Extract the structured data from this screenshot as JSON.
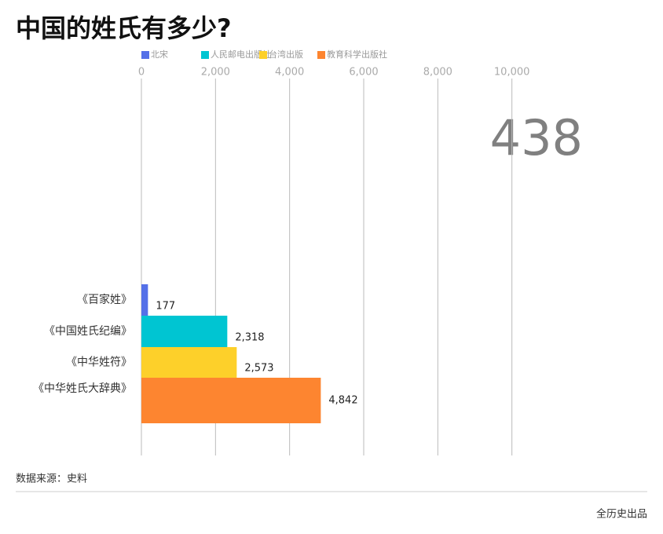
{
  "chart_data": {
    "type": "hbar",
    "title": "中国的姓氏有多少?",
    "legend": [
      "北宋",
      "人民邮电出版社",
      "台湾出版",
      "教育科学出版社"
    ],
    "categories": [
      "《百家姓》",
      "《中国姓氏纪编》",
      "《中华姓符》",
      "《中华姓氏大辞典》"
    ],
    "values": [
      177,
      2318,
      2573,
      4842
    ],
    "value_labels": [
      "177",
      "2,318",
      "2,573",
      "4,842"
    ],
    "colors": [
      "#5470e8",
      "#00c5d2",
      "#fdd02a",
      "#fd8530"
    ],
    "xlim": [
      0,
      12000
    ],
    "xticks": [
      0,
      {
        "value": 2000,
        "label": "2,000"
      },
      {
        "value": 4000,
        "label": "4,000"
      },
      {
        "value": 6000,
        "label": "6,000"
      },
      {
        "value": 8000,
        "label": "8,000"
      },
      {
        "value": 10000,
        "label": "10,000"
      }
    ],
    "grid": true,
    "annotation": "438",
    "source": "数据来源：史料",
    "credit": "全历史出品"
  }
}
